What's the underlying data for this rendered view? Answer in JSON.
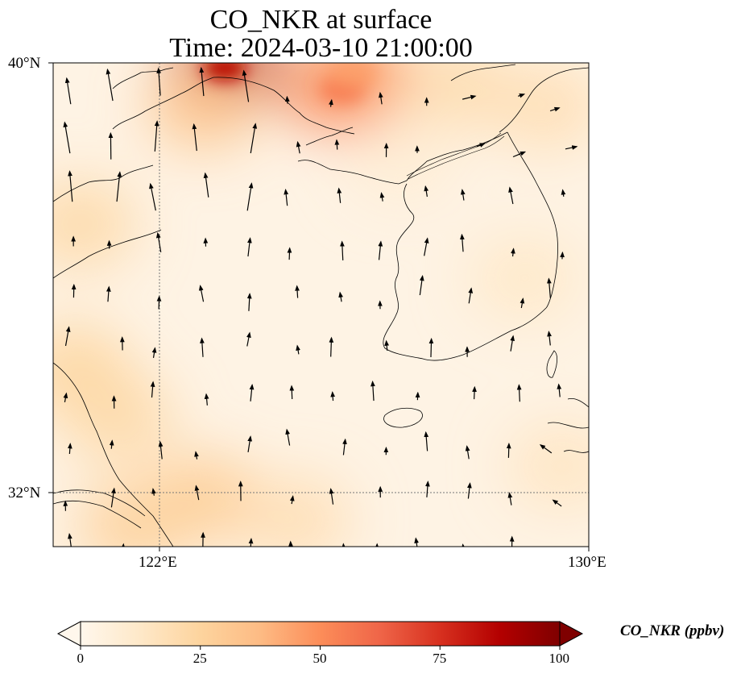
{
  "title": {
    "line1": "CO_NKR at surface",
    "line2": "Time: 2024-03-10 21:00:00"
  },
  "map": {
    "lon_range": [
      120,
      130
    ],
    "lat_range": [
      31,
      40
    ],
    "lat_ticks": [
      {
        "value": 32,
        "label": "32°N"
      },
      {
        "value": 40,
        "label": "40°N"
      }
    ],
    "lon_ticks": [
      {
        "value": 122,
        "label": "122°E"
      },
      {
        "value": 130,
        "label": "130°E"
      }
    ],
    "gridlines": "dotted at 122°E and 32°N",
    "colormap": "OrRd",
    "hotspots": [
      {
        "lon": 123.2,
        "lat": 39.9,
        "value": 85
      },
      {
        "lon": 125.4,
        "lat": 39.5,
        "value": 55
      },
      {
        "lon": 125.6,
        "lat": 39.8,
        "value": 45
      },
      {
        "lon": 122.8,
        "lat": 39.2,
        "value": 30
      },
      {
        "lon": 120.5,
        "lat": 37.0,
        "value": 22
      },
      {
        "lon": 120.4,
        "lat": 34.3,
        "value": 24
      },
      {
        "lon": 121.2,
        "lat": 33.4,
        "value": 22
      },
      {
        "lon": 122.8,
        "lat": 31.9,
        "value": 28
      },
      {
        "lon": 121.5,
        "lat": 31.4,
        "value": 26
      },
      {
        "lon": 124.5,
        "lat": 31.5,
        "value": 18
      },
      {
        "lon": 127.5,
        "lat": 39.6,
        "value": 20
      },
      {
        "lon": 129.2,
        "lat": 39.2,
        "value": 18
      },
      {
        "lon": 128.8,
        "lat": 36.0,
        "value": 12
      },
      {
        "lon": 129.5,
        "lat": 32.5,
        "value": 14
      },
      {
        "lon": 126.5,
        "lat": 38.2,
        "value": 8
      }
    ],
    "wind_vectors_description": "wind arrows mostly pointing north over the Yellow Sea; north-east in the north-east corner"
  },
  "colorbar": {
    "label": "CO_NKR (ppbv)",
    "min": 0,
    "max": 100,
    "ticks": [
      0,
      25,
      50,
      75,
      100
    ],
    "extend": "both"
  }
}
